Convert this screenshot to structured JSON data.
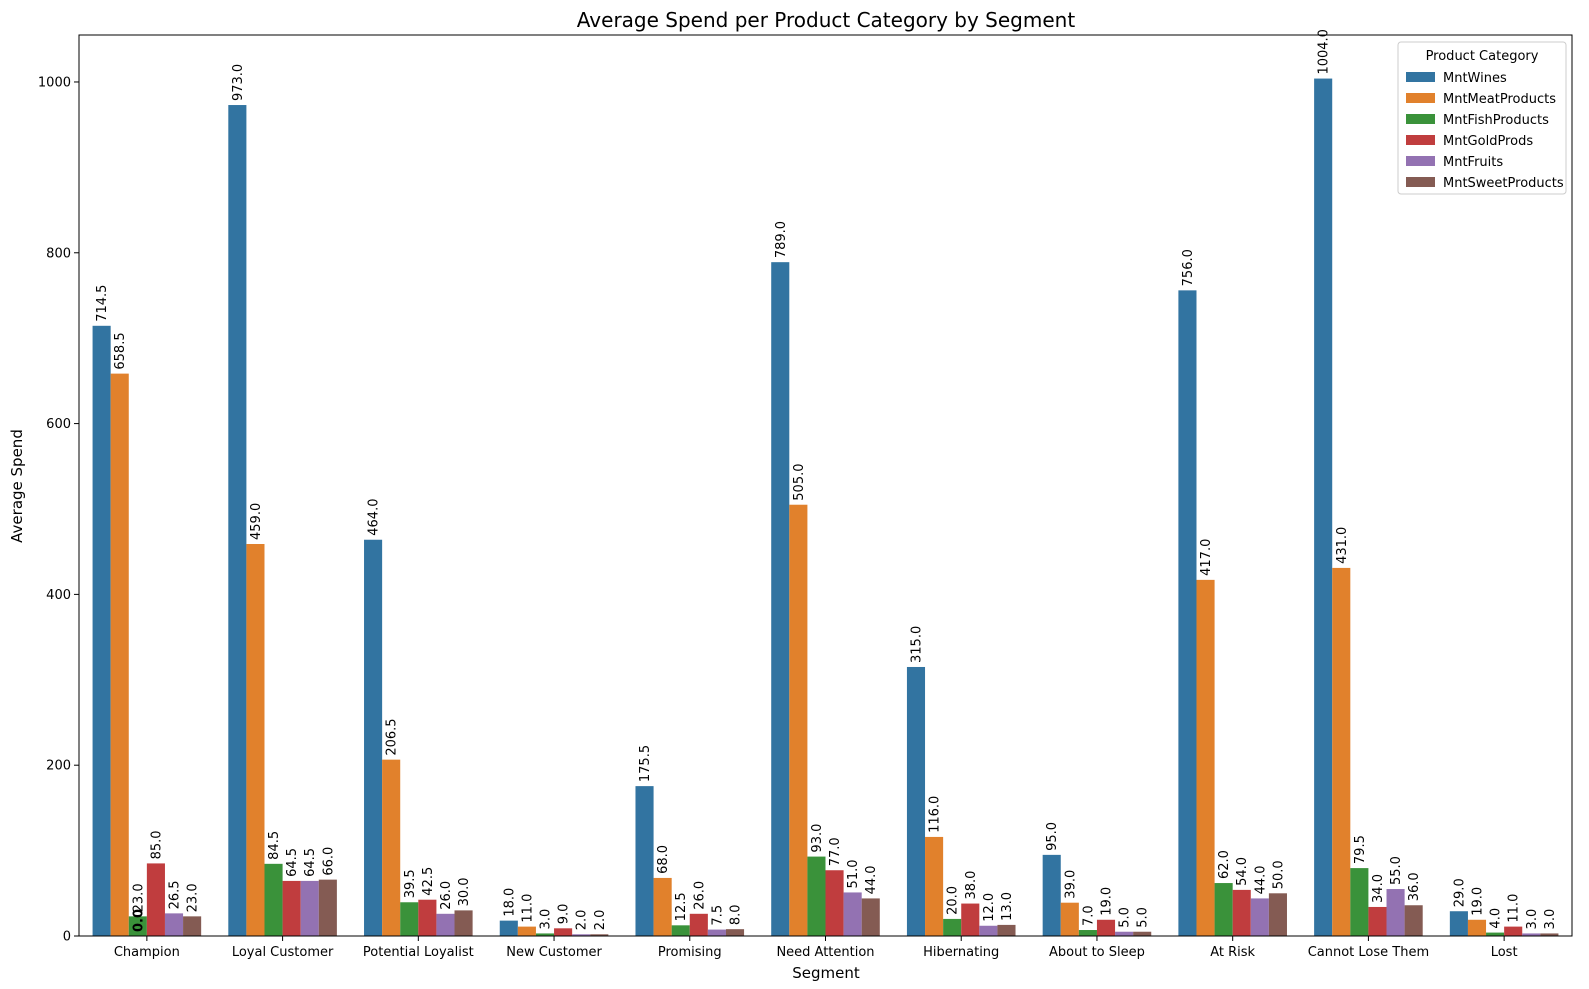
{
  "chart_data": {
    "type": "bar",
    "title": "Average Spend per Product Category by Segment",
    "xlabel": "Segment",
    "ylabel": "Average Spend",
    "ylim": [
      0,
      1055
    ],
    "yticks": [
      0,
      200,
      400,
      600,
      800,
      1000
    ],
    "grid": false,
    "legend": {
      "title": "Product Category",
      "placement": "top-right"
    },
    "categories": [
      "Champion",
      "Loyal Customer",
      "Potential Loyalist",
      "New Customer",
      "Promising",
      "Need Attention",
      "Hibernating",
      "About to Sleep",
      "At Risk",
      "Cannot Lose Them",
      "Lost"
    ],
    "series": [
      {
        "name": "MntWines",
        "color": "#3274a1",
        "values": [
          714.5,
          973.0,
          464.0,
          18.0,
          175.5,
          789.0,
          315.0,
          95.0,
          756.0,
          1004.0,
          29.0
        ]
      },
      {
        "name": "MntMeatProducts",
        "color": "#e1812c",
        "values": [
          658.5,
          459.0,
          206.5,
          11.0,
          68.0,
          505.0,
          116.0,
          39.0,
          417.0,
          431.0,
          19.0
        ]
      },
      {
        "name": "MntFishProducts",
        "color": "#3a923a",
        "values": [
          23.0,
          84.5,
          39.5,
          3.0,
          12.5,
          93.0,
          20.0,
          7.0,
          62.0,
          79.5,
          4.0
        ]
      },
      {
        "name": "MntGoldProds",
        "color": "#c03d3e",
        "values": [
          85.0,
          64.5,
          42.5,
          9.0,
          26.0,
          77.0,
          38.0,
          19.0,
          54.0,
          34.0,
          11.0
        ]
      },
      {
        "name": "MntFruits",
        "color": "#9372b2",
        "values": [
          26.5,
          64.5,
          26.0,
          2.0,
          7.5,
          51.0,
          12.0,
          5.0,
          44.0,
          55.0,
          3.0
        ]
      },
      {
        "name": "MntSweetProducts",
        "color": "#845b53",
        "values": [
          23.0,
          66.0,
          30.0,
          2.0,
          8.0,
          44.0,
          13.0,
          5.0,
          50.0,
          36.0,
          3.0
        ]
      }
    ],
    "extra_label": "0.0"
  }
}
